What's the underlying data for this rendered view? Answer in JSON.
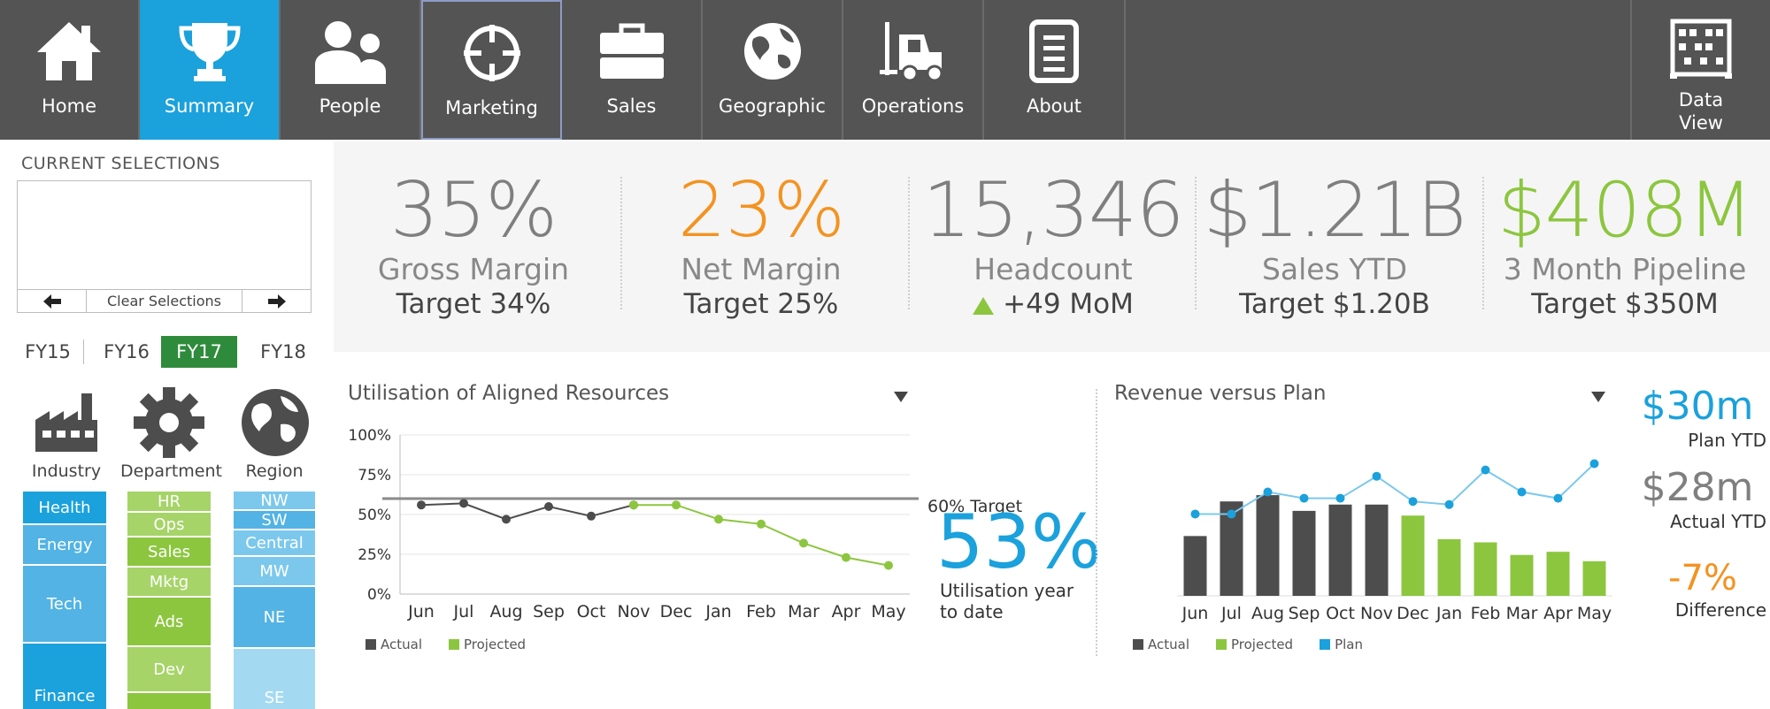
{
  "nav": {
    "items": [
      {
        "label": "Home",
        "icon": "home-icon"
      },
      {
        "label": "Summary",
        "icon": "trophy-icon"
      },
      {
        "label": "People",
        "icon": "people-icon"
      },
      {
        "label": "Marketing",
        "icon": "crosshair-icon"
      },
      {
        "label": "Sales",
        "icon": "briefcase-icon"
      },
      {
        "label": "Geographic",
        "icon": "globe-icon"
      },
      {
        "label": "Operations",
        "icon": "forklift-icon"
      },
      {
        "label": "About",
        "icon": "document-icon"
      }
    ],
    "active": "Summary",
    "data_view": {
      "line1": "Data",
      "line2": "View",
      "icon": "abacus-icon"
    }
  },
  "selections": {
    "title": "CURRENT SELECTIONS",
    "clear_label": "Clear Selections"
  },
  "fiscal_years": {
    "items": [
      "FY15",
      "FY16",
      "FY17",
      "FY18"
    ],
    "active": "FY17"
  },
  "filters": {
    "industry": {
      "label": "Industry",
      "items": [
        "Health",
        "Energy",
        "Tech",
        "Finance"
      ]
    },
    "department": {
      "label": "Department",
      "items": [
        "HR",
        "Ops",
        "Sales",
        "Mktg",
        "Ads",
        "Dev",
        ""
      ]
    },
    "region": {
      "label": "Region",
      "items": [
        "NW",
        "SW",
        "Central",
        "MW",
        "NE",
        "SE"
      ]
    }
  },
  "kpis": [
    {
      "value": "35%",
      "name": "Gross Margin",
      "target": "Target 34%",
      "color": "#7f7f7f"
    },
    {
      "value": "23%",
      "name": "Net Margin",
      "target": "Target 25%",
      "color": "#f39321"
    },
    {
      "value": "15,346",
      "name": "Headcount",
      "target": "+49 MoM",
      "color": "#7f7f7f"
    },
    {
      "value": "$1.21B",
      "name": "Sales YTD",
      "target": "Target $1.20B",
      "color": "#7f7f7f"
    },
    {
      "value": "$408M",
      "name": "3 Month Pipeline",
      "target": "Target $350M",
      "color": "#8cc63f"
    }
  ],
  "utilisation": {
    "title": "Utilisation of Aligned Resources",
    "target_label": "60% Target",
    "big_value": "53%",
    "big_caption_1": "Utilisation year",
    "big_caption_2": "to date",
    "legend": [
      "Actual",
      "Projected"
    ]
  },
  "revenue": {
    "title": "Revenue versus Plan",
    "legend": [
      "Actual",
      "Projected",
      "Plan"
    ],
    "plan_value": "$30m",
    "plan_label": "Plan YTD",
    "actual_value": "$28m",
    "actual_label": "Actual YTD",
    "diff_value": "-7%",
    "diff_label": "Difference"
  },
  "colors": {
    "blue": "#1ba1dc",
    "green": "#8cc63f",
    "dark": "#4d4d4d",
    "orange": "#f39321",
    "darkgreen": "#2e8b3b"
  },
  "chart_data": [
    {
      "type": "line",
      "title": "Utilisation of Aligned Resources",
      "categories": [
        "Jun",
        "Jul",
        "Aug",
        "Sep",
        "Oct",
        "Nov",
        "Dec",
        "Jan",
        "Feb",
        "Mar",
        "Apr",
        "May"
      ],
      "ylim": [
        0,
        100
      ],
      "yticks": [
        "0%",
        "25%",
        "50%",
        "75%",
        "100%"
      ],
      "target": 60,
      "series": [
        {
          "name": "Actual",
          "values": [
            56,
            57,
            47,
            55,
            49,
            56,
            null,
            null,
            null,
            null,
            null,
            null
          ]
        },
        {
          "name": "Projected",
          "values": [
            null,
            null,
            null,
            null,
            null,
            56,
            56,
            47,
            44,
            32,
            23,
            18
          ]
        }
      ],
      "legend_position": "bottom-left",
      "grid": true
    },
    {
      "type": "bar",
      "title": "Revenue versus Plan",
      "categories": [
        "Jun",
        "Jul",
        "Aug",
        "Sep",
        "Oct",
        "Nov",
        "Dec",
        "Jan",
        "Feb",
        "Mar",
        "Apr",
        "May"
      ],
      "ylim": [
        0,
        100
      ],
      "series": [
        {
          "name": "Actual",
          "values": [
            38,
            60,
            64,
            54,
            58,
            58,
            null,
            null,
            null,
            null,
            null,
            null
          ]
        },
        {
          "name": "Projected",
          "values": [
            null,
            null,
            null,
            null,
            null,
            null,
            51,
            36,
            34,
            26,
            28,
            22
          ]
        },
        {
          "name": "Plan",
          "values": [
            52,
            52,
            66,
            62,
            62,
            76,
            60,
            58,
            80,
            66,
            62,
            84
          ]
        }
      ],
      "legend_position": "bottom-left",
      "grid": false
    }
  ]
}
